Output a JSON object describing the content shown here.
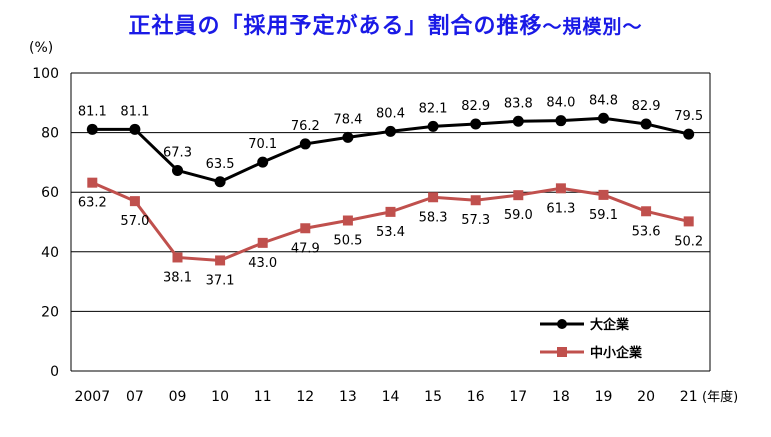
{
  "chart_data": {
    "type": "line",
    "title": "正社員の「採用予定がある」割合の推移",
    "subtitle": "～規模別～",
    "ylabel": "(%)",
    "xlabel": "(年度)",
    "ylim": [
      0,
      100
    ],
    "yticks": [
      0,
      20,
      40,
      60,
      80,
      100
    ],
    "grid": true,
    "legend_position": "bottom-right",
    "categories": [
      "2007",
      "07",
      "09",
      "10",
      "11",
      "12",
      "13",
      "14",
      "15",
      "16",
      "17",
      "18",
      "19",
      "20",
      "21"
    ],
    "series": [
      {
        "name": "大企業",
        "color": "#000000",
        "marker": "circle",
        "values": [
          81.1,
          81.1,
          67.3,
          63.5,
          70.1,
          76.2,
          78.4,
          80.4,
          82.1,
          82.9,
          83.8,
          84.0,
          84.8,
          82.9,
          79.5
        ]
      },
      {
        "name": "中小企業",
        "color": "#c0504d",
        "marker": "square",
        "values": [
          63.2,
          57.0,
          38.1,
          37.1,
          43.0,
          47.9,
          50.5,
          53.4,
          58.3,
          57.3,
          59.0,
          61.3,
          59.1,
          53.6,
          50.2
        ]
      }
    ]
  }
}
